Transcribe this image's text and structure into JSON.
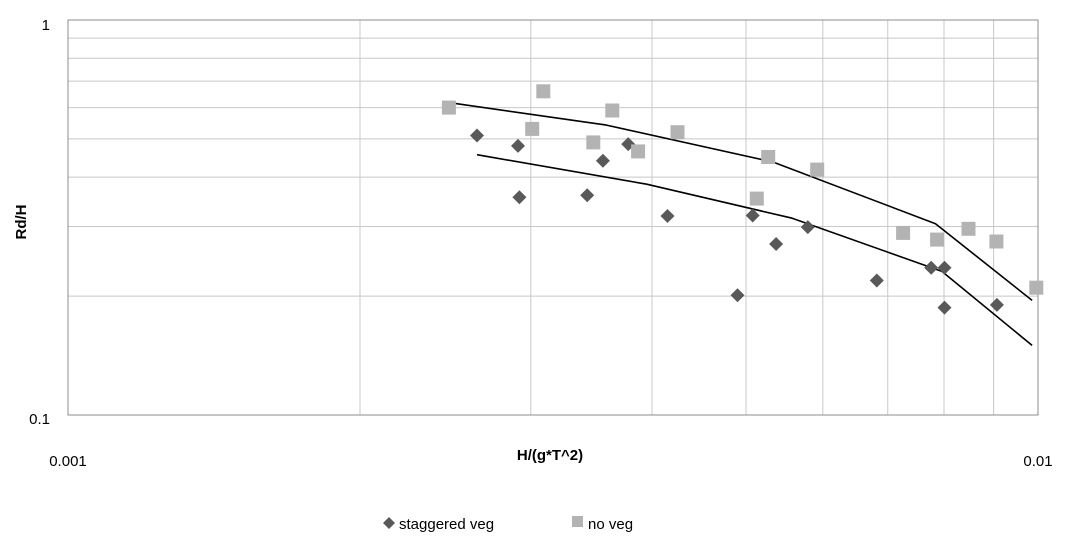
{
  "chart_data": {
    "type": "scatter",
    "xlabel": "H/(g*T^2)",
    "ylabel": "Rd/H",
    "x_scale": "log",
    "y_scale": "log",
    "xlim": [
      0.001,
      0.01
    ],
    "ylim": [
      0.1,
      1
    ],
    "x_tick_labels": [
      "0.001",
      "0.01"
    ],
    "y_tick_labels": [
      "0.1",
      "1"
    ],
    "grid": true,
    "legend_position": "bottom",
    "series": [
      {
        "name": "staggered veg",
        "marker": "diamond",
        "color": "#595959",
        "points": [
          [
            0.00264,
            0.51
          ],
          [
            0.00291,
            0.48
          ],
          [
            0.00292,
            0.356
          ],
          [
            0.00343,
            0.36
          ],
          [
            0.00356,
            0.44
          ],
          [
            0.00378,
            0.485
          ],
          [
            0.00415,
            0.319
          ],
          [
            0.00508,
            0.32
          ],
          [
            0.00537,
            0.271
          ],
          [
            0.00579,
            0.299
          ],
          [
            0.00682,
            0.219
          ],
          [
            0.00776,
            0.236
          ],
          [
            0.00801,
            0.236
          ],
          [
            0.00801,
            0.187
          ],
          [
            0.00907,
            0.19
          ],
          [
            0.0049,
            0.201
          ]
        ]
      },
      {
        "name": "no veg",
        "marker": "square",
        "color": "#b3b3b3",
        "points": [
          [
            0.00247,
            0.6
          ],
          [
            0.00301,
            0.53
          ],
          [
            0.00309,
            0.66
          ],
          [
            0.00348,
            0.49
          ],
          [
            0.00364,
            0.59
          ],
          [
            0.00387,
            0.465
          ],
          [
            0.00425,
            0.52
          ],
          [
            0.00513,
            0.353
          ],
          [
            0.00527,
            0.45
          ],
          [
            0.00592,
            0.418
          ],
          [
            0.00726,
            0.289
          ],
          [
            0.00787,
            0.278
          ],
          [
            0.00848,
            0.296
          ],
          [
            0.00906,
            0.275
          ],
          [
            0.00996,
            0.21
          ]
        ]
      }
    ],
    "trendlines": [
      {
        "for": "no veg",
        "points": [
          [
            0.00247,
            0.618
          ],
          [
            0.00359,
            0.542
          ],
          [
            0.00533,
            0.437
          ],
          [
            0.00784,
            0.305
          ],
          [
            0.00986,
            0.195
          ]
        ]
      },
      {
        "for": "staggered veg",
        "points": [
          [
            0.00264,
            0.456
          ],
          [
            0.00395,
            0.384
          ],
          [
            0.00558,
            0.315
          ],
          [
            0.00796,
            0.231
          ],
          [
            0.00986,
            0.15
          ]
        ]
      }
    ]
  }
}
